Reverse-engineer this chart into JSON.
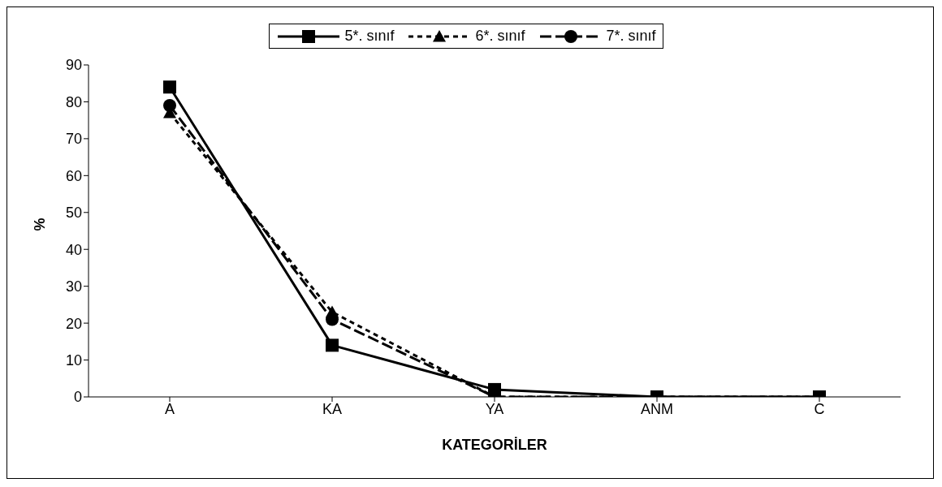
{
  "chart_data": {
    "type": "line",
    "xlabel": "KATEGORİLER",
    "ylabel": "%",
    "categories": [
      "A",
      "KA",
      "YA",
      "ANM",
      "C"
    ],
    "series": [
      {
        "name": "5*. sınıf",
        "color": "#000000",
        "marker": "square",
        "line_style": "solid",
        "values": [
          84,
          14,
          2,
          0,
          0
        ]
      },
      {
        "name": "6*. sınıf",
        "color": "#000000",
        "marker": "triangle",
        "line_style": "dotted",
        "values": [
          77,
          23,
          0,
          0,
          0
        ]
      },
      {
        "name": "7*. sınıf",
        "color": "#000000",
        "marker": "circle",
        "line_style": "dashed",
        "values": [
          79,
          21,
          0,
          0,
          0
        ]
      }
    ],
    "ylim": [
      0,
      90
    ],
    "yticks": [
      0,
      10,
      20,
      30,
      40,
      50,
      60,
      70,
      80,
      90
    ],
    "grid": false,
    "legend": "top"
  }
}
